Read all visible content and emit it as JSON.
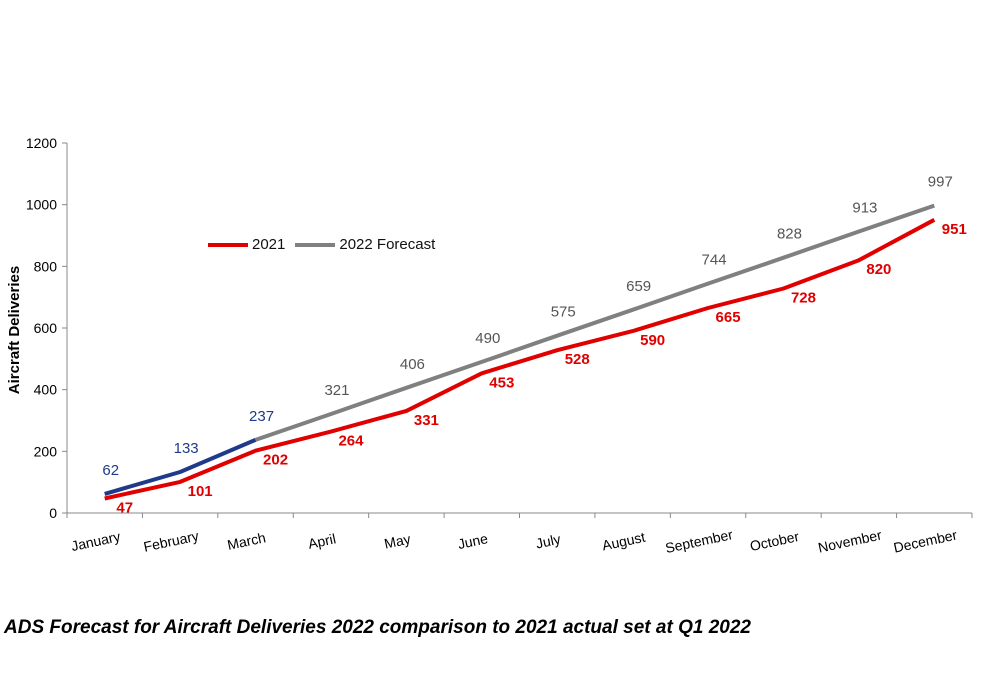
{
  "caption": "ADS Forecast for Aircraft Deliveries 2022 comparison to 2021 actual set at Q1 2022",
  "colors": {
    "actual2021": "#e00000",
    "forecast2022": "#808080",
    "actual2022": "#1f3a8a",
    "label2022": "#555555",
    "axis": "#888888"
  },
  "chart_data": {
    "type": "line",
    "categories": [
      "January",
      "February",
      "March",
      "April",
      "May",
      "June",
      "July",
      "August",
      "September",
      "October",
      "November",
      "December"
    ],
    "ylabel": "Aircraft Deliveries",
    "ylim": [
      0,
      1200
    ],
    "yticks": [
      0,
      200,
      400,
      600,
      800,
      1000,
      1200
    ],
    "grid": false,
    "legend_position": "upper-left",
    "series": [
      {
        "name": "2021",
        "values": [
          47,
          101,
          202,
          264,
          331,
          453,
          528,
          590,
          665,
          728,
          820,
          951
        ]
      },
      {
        "name": "2022 Forecast",
        "values": [
          62,
          133,
          237,
          321,
          406,
          490,
          575,
          659,
          744,
          828,
          913,
          997
        ]
      }
    ],
    "actual_2022_through": "March"
  }
}
